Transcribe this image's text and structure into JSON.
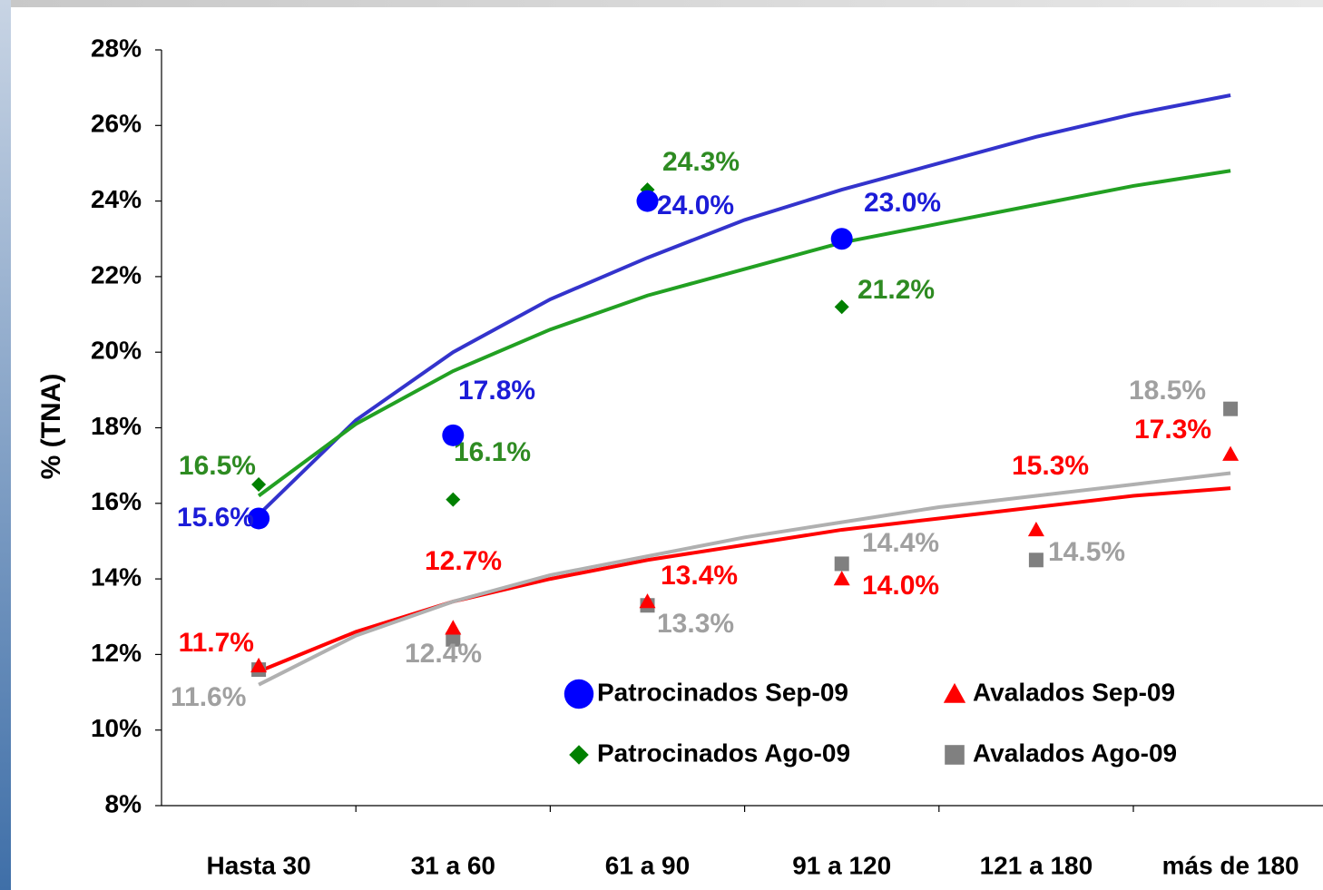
{
  "chart_data": {
    "type": "scatter",
    "y_label": "% (TNA)",
    "categories": [
      "Hasta 30",
      "31 a 60",
      "61 a 90",
      "91 a 120",
      "121 a 180",
      "más de 180"
    ],
    "ylim": [
      8,
      28
    ],
    "yticks": [
      {
        "value": 8,
        "label": "8%"
      },
      {
        "value": 10,
        "label": "10%"
      },
      {
        "value": 12,
        "label": "12%"
      },
      {
        "value": 14,
        "label": "14%"
      },
      {
        "value": 16,
        "label": "16%"
      },
      {
        "value": 18,
        "label": "18%"
      },
      {
        "value": 20,
        "label": "20%"
      },
      {
        "value": 22,
        "label": "22%"
      },
      {
        "value": 24,
        "label": "24%"
      },
      {
        "value": 26,
        "label": "26%"
      },
      {
        "value": 28,
        "label": "28%"
      }
    ],
    "series": [
      {
        "name": "Patrocinados Sep-09",
        "color": "#0000ff",
        "label_color": "#1c1cd8",
        "marker": "circle",
        "values": [
          15.6,
          17.8,
          24.0,
          23.0,
          null,
          null
        ],
        "value_labels": [
          "15.6%",
          "17.8%",
          "24.0%",
          "23.0%",
          null,
          null
        ]
      },
      {
        "name": "Patrocinados Ago-09",
        "color": "#008000",
        "label_color": "#2e8b22",
        "marker": "diamond",
        "values": [
          16.5,
          16.1,
          24.3,
          21.2,
          null,
          null
        ],
        "value_labels": [
          "16.5%",
          "16.1%",
          "24.3%",
          "21.2%",
          null,
          null
        ]
      },
      {
        "name": "Avalados Sep-09",
        "color": "#ff0000",
        "label_color": "#ff0000",
        "marker": "triangle",
        "values": [
          11.7,
          12.7,
          13.4,
          14.0,
          15.3,
          17.3
        ],
        "value_labels": [
          "11.7%",
          "12.7%",
          "13.4%",
          "14.0%",
          "15.3%",
          "17.3%"
        ]
      },
      {
        "name": "Avalados Ago-09",
        "color": "#808080",
        "label_color": "#a0a0a0",
        "marker": "square",
        "values": [
          11.6,
          12.4,
          13.3,
          14.4,
          14.5,
          18.5
        ],
        "value_labels": [
          "11.6%",
          "12.4%",
          "13.3%",
          "14.4%",
          "14.5%",
          "18.5%"
        ]
      }
    ],
    "trendlines": [
      {
        "color": "#3333cc",
        "x": [
          1,
          1.5,
          2,
          2.5,
          3,
          3.5,
          4,
          4.5,
          5,
          5.5,
          6
        ],
        "values": [
          15.7,
          18.2,
          20.0,
          21.4,
          22.5,
          23.5,
          24.3,
          25.0,
          25.7,
          26.3,
          26.8
        ]
      },
      {
        "color": "#22a022",
        "x": [
          1,
          1.5,
          2,
          2.5,
          3,
          3.5,
          4,
          4.5,
          5,
          5.5,
          6
        ],
        "values": [
          16.2,
          18.1,
          19.5,
          20.6,
          21.5,
          22.2,
          22.9,
          23.4,
          23.9,
          24.4,
          24.8
        ]
      },
      {
        "color": "#ff0000",
        "x": [
          1,
          1.5,
          2,
          2.5,
          3,
          3.5,
          4,
          4.5,
          5,
          5.5,
          6
        ],
        "values": [
          11.55,
          12.6,
          13.4,
          14.0,
          14.5,
          14.9,
          15.3,
          15.6,
          15.9,
          16.2,
          16.4
        ]
      },
      {
        "color": "#b0b0b0",
        "x": [
          1,
          1.5,
          2,
          2.5,
          3,
          3.5,
          4,
          4.5,
          5,
          5.5,
          6
        ],
        "values": [
          11.2,
          12.5,
          13.4,
          14.1,
          14.6,
          15.1,
          15.5,
          15.9,
          16.2,
          16.5,
          16.8
        ]
      }
    ]
  }
}
